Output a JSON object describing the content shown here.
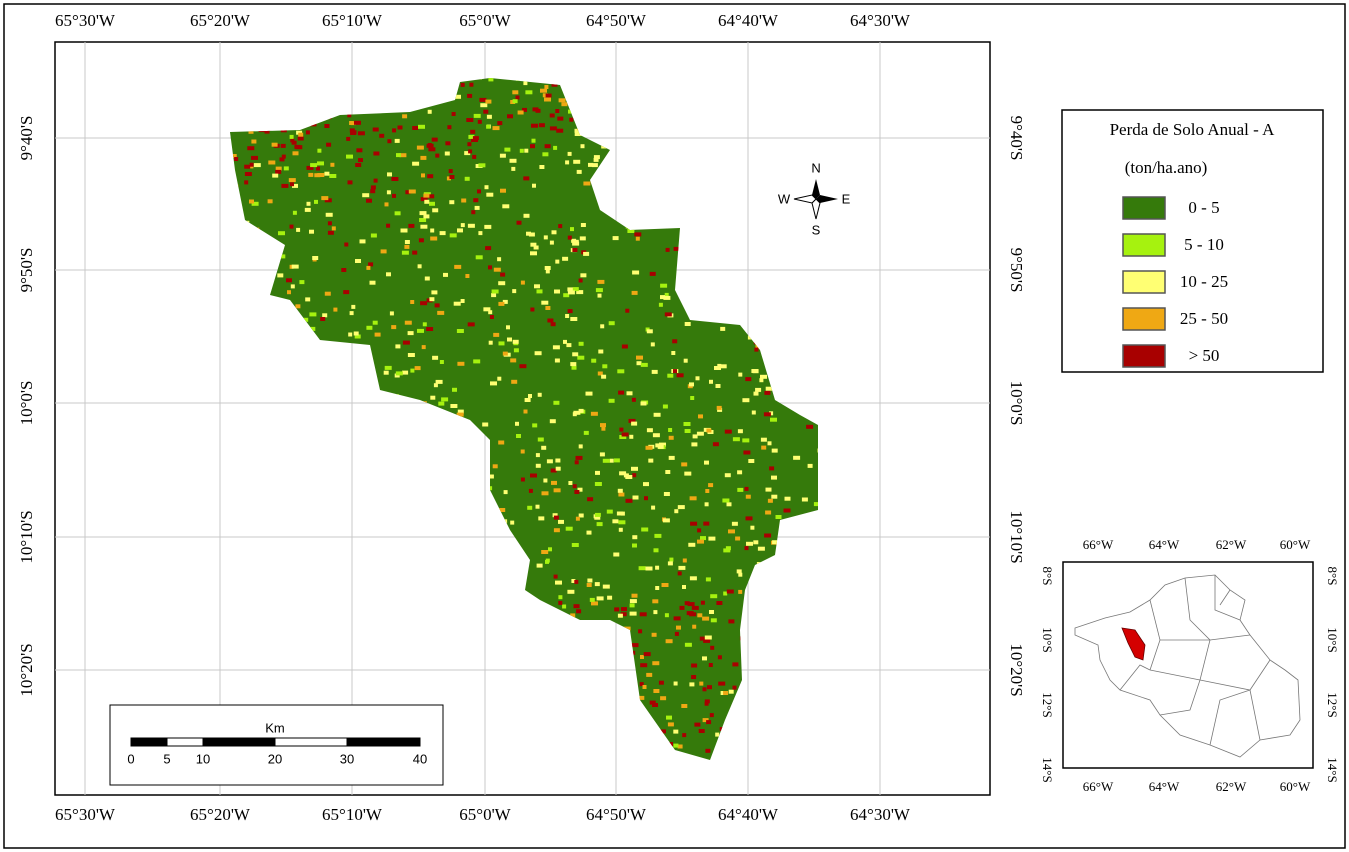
{
  "map": {
    "top_lon_labels": [
      "65°30'W",
      "65°20'W",
      "65°10'W",
      "65°0'W",
      "64°50'W",
      "64°40'W",
      "64°30'W"
    ],
    "bottom_lon_labels": [
      "65°30'W",
      "65°20'W",
      "65°10'W",
      "65°0'W",
      "64°50'W",
      "64°40'W",
      "64°30'W"
    ],
    "left_lat_labels": [
      "9°40'S",
      "9°50'S",
      "10°0'S",
      "10°10'S",
      "10°20'S"
    ],
    "right_lat_labels": [
      "9°40'S",
      "9°50'S",
      "10°0'S",
      "10°10'S",
      "10°20'S"
    ]
  },
  "legend": {
    "title": "Perda de Solo Anual - A",
    "subtitle": "(ton/ha.ano)",
    "items": [
      {
        "label": "0 - 5",
        "color": "#357a0b"
      },
      {
        "label": "5 - 10",
        "color": "#a6f20f"
      },
      {
        "label": "10 - 25",
        "color": "#ffff73"
      },
      {
        "label": "25 - 50",
        "color": "#efa814"
      },
      {
        "label": "> 50",
        "color": "#a80000"
      }
    ]
  },
  "compass": {
    "n": "N",
    "s": "S",
    "e": "E",
    "w": "W"
  },
  "scale_bar": {
    "unit": "Km",
    "labels": [
      "0",
      "5",
      "10",
      "20",
      "30",
      "40"
    ]
  },
  "inset": {
    "top_labels": [
      "66°W",
      "64°W",
      "62°W",
      "60°W"
    ],
    "bottom_labels": [
      "66°W",
      "64°W",
      "62°W",
      "60°W"
    ],
    "left_labels": [
      "8°S",
      "10°S",
      "12°S",
      "14°S"
    ],
    "right_labels": [
      "8°S",
      "10°S",
      "12°S",
      "14°S"
    ]
  }
}
